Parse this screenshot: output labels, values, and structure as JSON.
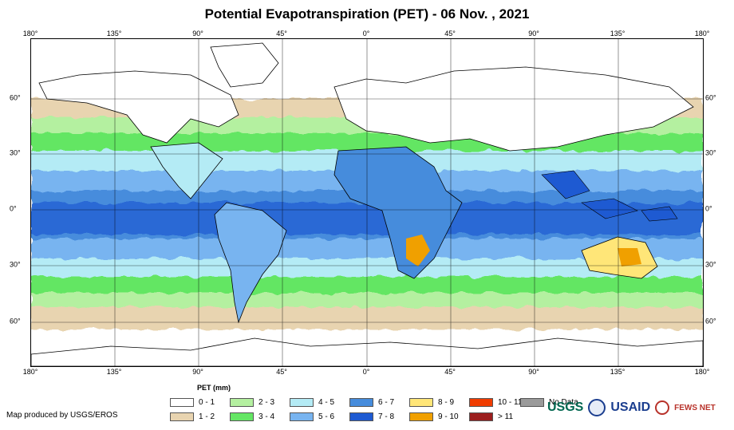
{
  "title": "Potential Evapotranspiration (PET) - 06 Nov. , 2021",
  "axes": {
    "lon_labels": [
      "180°",
      "135°",
      "90°",
      "45°",
      "0°",
      "45°",
      "90°",
      "135°",
      "180°"
    ],
    "lat_labels": [
      "60°",
      "30°",
      "0°",
      "30°",
      "60°"
    ]
  },
  "legend": {
    "title": "PET (mm)",
    "items": [
      {
        "label": "0 - 1",
        "color": "#ffffff"
      },
      {
        "label": "1 - 2",
        "color": "#e8d4b0"
      },
      {
        "label": "2 - 3",
        "color": "#b4f0a0"
      },
      {
        "label": "3 - 4",
        "color": "#64e664"
      },
      {
        "label": "4 - 5",
        "color": "#b4ebf5"
      },
      {
        "label": "5 - 6",
        "color": "#78b4f0"
      },
      {
        "label": "6 - 7",
        "color": "#468cdc"
      },
      {
        "label": "7 - 8",
        "color": "#1e5ad2"
      },
      {
        "label": "8 - 9",
        "color": "#ffe678"
      },
      {
        "label": "9 - 10",
        "color": "#f0a000"
      },
      {
        "label": "10 - 11",
        "color": "#f03c00"
      },
      {
        "label": "> 11",
        "color": "#9b1e1e"
      },
      {
        "label": "No Data",
        "color": "#9a9a9a"
      }
    ]
  },
  "credit": "Map produced by USGS/EROS",
  "logos": {
    "usgs": "USGS",
    "usaid": "USAID",
    "fews": "FEWS NET"
  }
}
